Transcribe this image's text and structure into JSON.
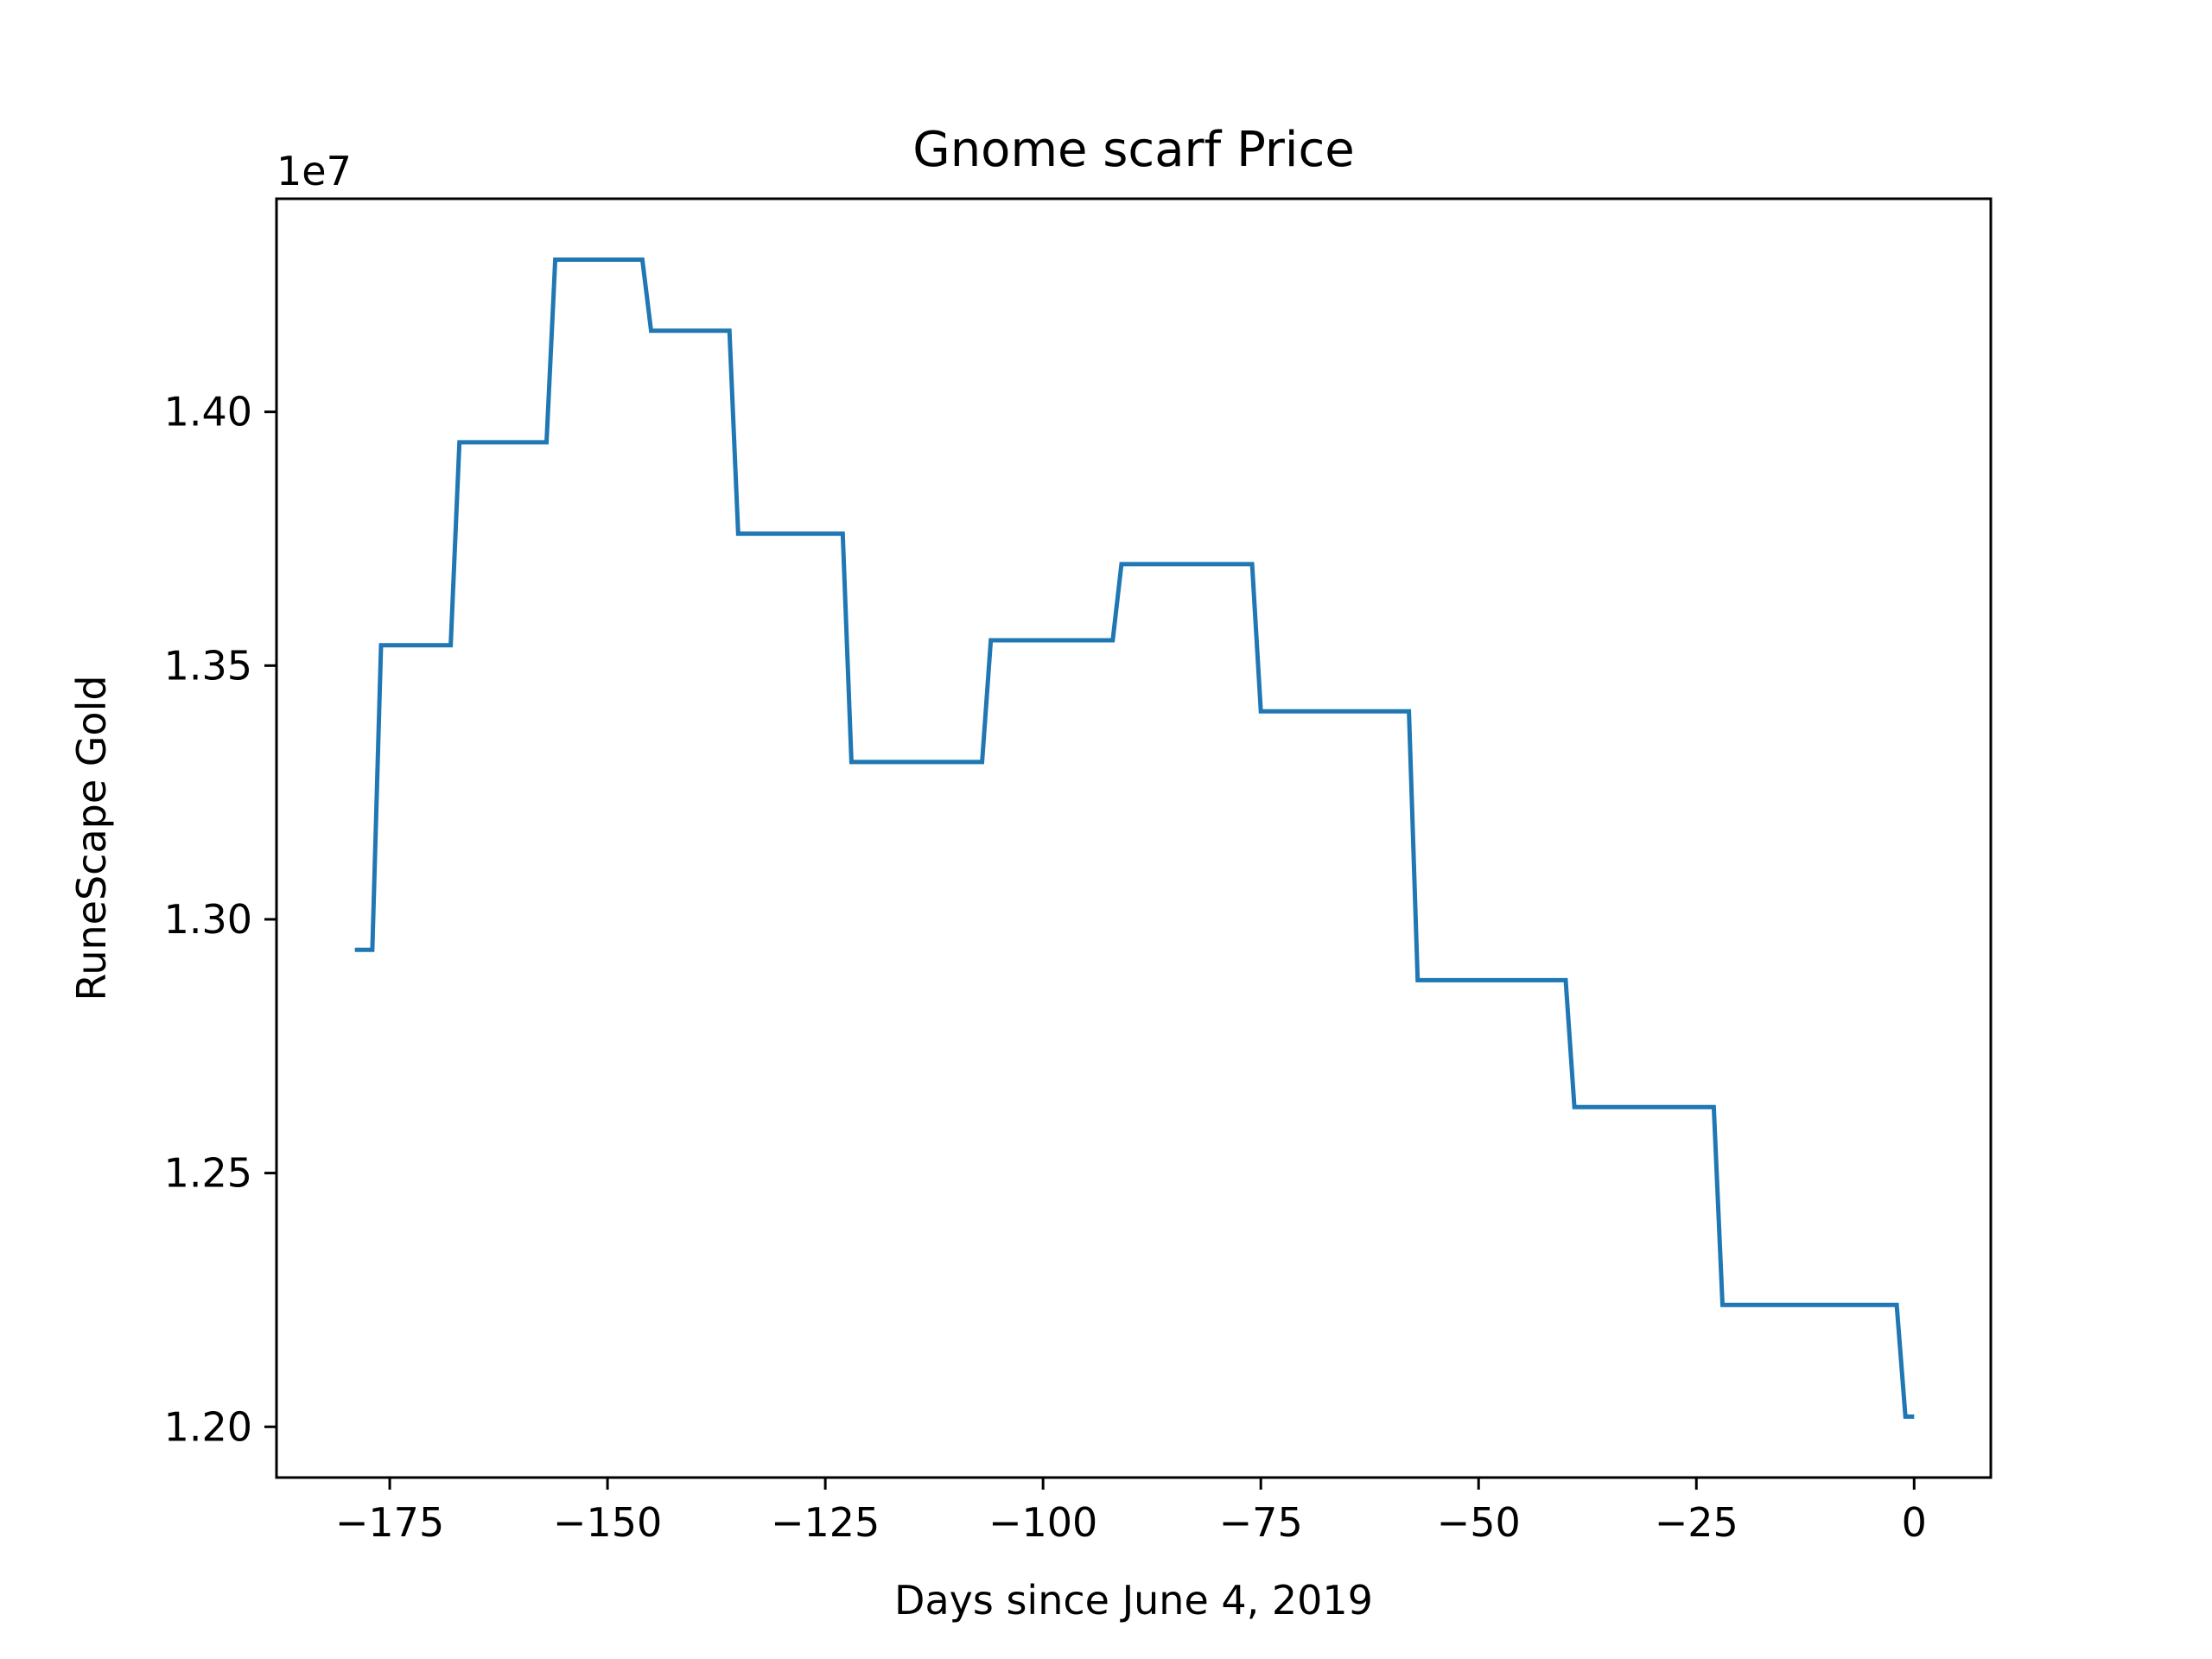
{
  "chart_data": {
    "type": "line",
    "title": "Gnome scarf Price",
    "xlabel": "Days since June 4, 2019",
    "ylabel": "RuneScape Gold",
    "y_offset_label": "1e7",
    "y_scale_factor": 10000000,
    "xlim": [
      -188,
      8.8
    ],
    "ylim": [
      11900000,
      14420000
    ],
    "x_ticks": [
      -175,
      -150,
      -125,
      -100,
      -75,
      -50,
      -25,
      0
    ],
    "x_tick_labels": [
      "−175",
      "−150",
      "−125",
      "−100",
      "−75",
      "−50",
      "−25",
      "0"
    ],
    "y_ticks": [
      12000000,
      12500000,
      13000000,
      13500000,
      14000000
    ],
    "y_tick_labels": [
      "1.20",
      "1.25",
      "1.30",
      "1.35",
      "1.40"
    ],
    "grid": false,
    "color": "#1f77b4",
    "series": [
      {
        "x": [
          -179,
          -178,
          -177,
          -176,
          -168,
          -167,
          -157,
          -156,
          -146,
          -145,
          -136,
          -135,
          -123,
          -122,
          -107,
          -106,
          -92,
          -91,
          -76,
          -75,
          -58,
          -57,
          -40,
          -39,
          -23,
          -22,
          -2,
          -1,
          0
        ],
        "y": [
          12940000,
          12940000,
          12940000,
          13540000,
          13540000,
          13940000,
          13940000,
          14300000,
          14300000,
          14160000,
          14160000,
          13760000,
          13760000,
          13310000,
          13310000,
          13550000,
          13550000,
          13700000,
          13700000,
          13410000,
          13410000,
          12880000,
          12880000,
          12630000,
          12630000,
          12240000,
          12240000,
          12020000,
          12020000
        ]
      }
    ]
  }
}
